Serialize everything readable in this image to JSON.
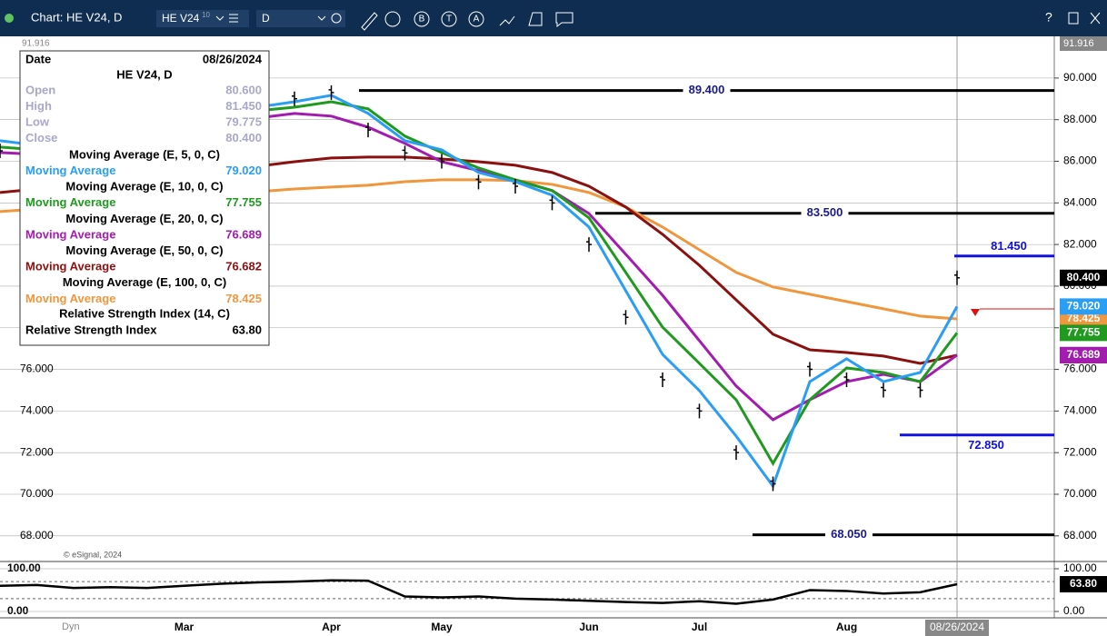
{
  "toolbar": {
    "title": "Chart: HE V24, D",
    "symbol": "HE V24",
    "symbol_sup": "10",
    "interval": "D",
    "tool_letters": [
      "B",
      "T",
      "A"
    ],
    "help": "?"
  },
  "info_panel": {
    "date_label": "Date",
    "date": "08/26/2024",
    "symbol": "HE V24, D",
    "rows": [
      [
        "Open",
        "80.600"
      ],
      [
        "High",
        "81.450"
      ],
      [
        "Low",
        "79.775"
      ],
      [
        "Close",
        "80.400"
      ]
    ],
    "ma_label": "Moving Average",
    "rsi_label": "Relative Strength Index"
  },
  "copyright": "© eSignal, 2024",
  "dyn": "Dyn",
  "chart_data": {
    "type": "line",
    "categories": [
      null,
      null,
      null,
      null,
      null,
      "Mar",
      null,
      null,
      null,
      "Apr",
      null,
      null,
      "May",
      null,
      null,
      null,
      "Jun",
      null,
      null,
      "Jul",
      null,
      null,
      null,
      "Aug",
      null,
      null,
      "08/26/2024"
    ],
    "ylim": [
      66.9,
      91.916
    ],
    "yticks": [
      {
        "value": 68,
        "label": "68.000"
      },
      {
        "value": 70,
        "label": "70.000"
      },
      {
        "value": 72,
        "label": "72.000"
      },
      {
        "value": 74,
        "label": "74.000"
      },
      {
        "value": 76,
        "label": "76.000"
      },
      {
        "value": 78,
        "label": "78.000"
      },
      {
        "value": 80,
        "label": "80.000"
      },
      {
        "value": 82,
        "label": "82.000"
      },
      {
        "value": 84,
        "label": "84.000"
      },
      {
        "value": 86,
        "label": "86.000"
      },
      {
        "value": 88,
        "label": "88.000"
      },
      {
        "value": 90,
        "label": "90.000"
      }
    ],
    "grid": true,
    "series": [
      {
        "name": "Close",
        "color": "#000000",
        "values": [
          86.5,
          86.3,
          87.0,
          87.6,
          88.0,
          88.2,
          88.5,
          88.9,
          89.0,
          89.3,
          87.5,
          86.4,
          86.0,
          85.0,
          84.8,
          84.0,
          82.0,
          78.5,
          75.5,
          74.0,
          72.0,
          70.5,
          76.0,
          75.5,
          75.0,
          75.0,
          80.4
        ],
        "last_label": "80.400"
      },
      {
        "name": "Moving Average (E, 5, 0, C)",
        "color": "#2a9df4",
        "values": [
          86.99,
          86.77,
          87.21,
          87.42,
          87.73,
          88.08,
          88.3,
          88.6,
          88.86,
          89.17,
          88.3,
          86.99,
          86.55,
          85.46,
          85.02,
          84.37,
          82.84,
          79.78,
          76.72,
          74.98,
          72.79,
          70.39,
          75.41,
          76.51,
          75.41,
          75.85,
          79.02
        ],
        "last_label": "79.020"
      },
      {
        "name": "Moving Average (E, 10, 0, C)",
        "color": "#1f9a1f",
        "values": [
          86.68,
          86.55,
          86.99,
          87.21,
          87.55,
          87.86,
          88.08,
          88.43,
          88.6,
          88.86,
          88.52,
          87.21,
          86.42,
          85.68,
          85.11,
          84.59,
          83.28,
          80.66,
          78.03,
          76.29,
          74.54,
          71.48,
          74.54,
          76.07,
          75.85,
          75.41,
          77.755
        ],
        "last_label": "77.755"
      },
      {
        "name": "Moving Average (E, 20, 0, C)",
        "color": "#a21caf",
        "values": [
          86.42,
          86.33,
          86.55,
          86.77,
          87.12,
          87.42,
          87.73,
          88.08,
          88.3,
          88.17,
          87.64,
          86.86,
          85.98,
          85.55,
          85.11,
          84.59,
          83.49,
          81.53,
          79.56,
          77.38,
          75.2,
          73.58,
          74.54,
          75.41,
          75.76,
          75.41,
          76.689
        ],
        "last_label": "76.689"
      },
      {
        "name": "Moving Average (E, 50, 0, C)",
        "color": "#8b1010",
        "values": [
          84.5,
          84.67,
          84.89,
          85.02,
          85.15,
          85.33,
          85.55,
          85.76,
          85.98,
          86.16,
          86.2,
          86.2,
          86.11,
          85.98,
          85.81,
          85.46,
          84.8,
          83.8,
          82.49,
          81.0,
          79.34,
          77.69,
          76.94,
          76.81,
          76.64,
          76.29,
          76.682
        ],
        "last_label": "76.682"
      },
      {
        "name": "Moving Average (E, 100, 0, C)",
        "color": "#f0963c",
        "values": [
          83.58,
          83.71,
          83.89,
          84.06,
          84.19,
          84.32,
          84.45,
          84.54,
          84.67,
          84.76,
          84.85,
          85.02,
          85.11,
          85.11,
          85.07,
          84.89,
          84.5,
          83.8,
          82.84,
          81.75,
          80.66,
          79.96,
          79.61,
          79.26,
          78.91,
          78.56,
          78.425
        ],
        "last_label": "78.425"
      }
    ],
    "levels": [
      {
        "value": 89.4,
        "label": "89.400",
        "color": "#000000",
        "label_color": "#1a1a8c"
      },
      {
        "value": 83.5,
        "label": "83.500",
        "color": "#000000",
        "label_color": "#1a1a8c"
      },
      {
        "value": 81.45,
        "label": "81.450",
        "color": "#1010e0",
        "label_color": "#1010e0"
      },
      {
        "value": 72.85,
        "label": "72.850",
        "color": "#1010e0",
        "label_color": "#1010e0"
      },
      {
        "value": 68.05,
        "label": "68.050",
        "color": "#000000",
        "label_color": "#1a1a8c"
      }
    ],
    "rsi": {
      "name": "Relative Strength Index (14, C)",
      "color": "#000000",
      "ylim": [
        0,
        100
      ],
      "yticks": [
        {
          "value": 100,
          "label": "100.00"
        },
        {
          "value": 0,
          "label": "0.00"
        }
      ],
      "bands": [
        70,
        30
      ],
      "values": [
        60,
        62,
        55,
        57,
        55,
        60,
        65,
        68,
        70,
        73,
        72,
        35,
        33,
        35,
        30,
        28,
        25,
        22,
        20,
        24,
        18,
        28,
        50,
        48,
        42,
        45,
        63.8
      ],
      "last_label": "63.80"
    }
  }
}
